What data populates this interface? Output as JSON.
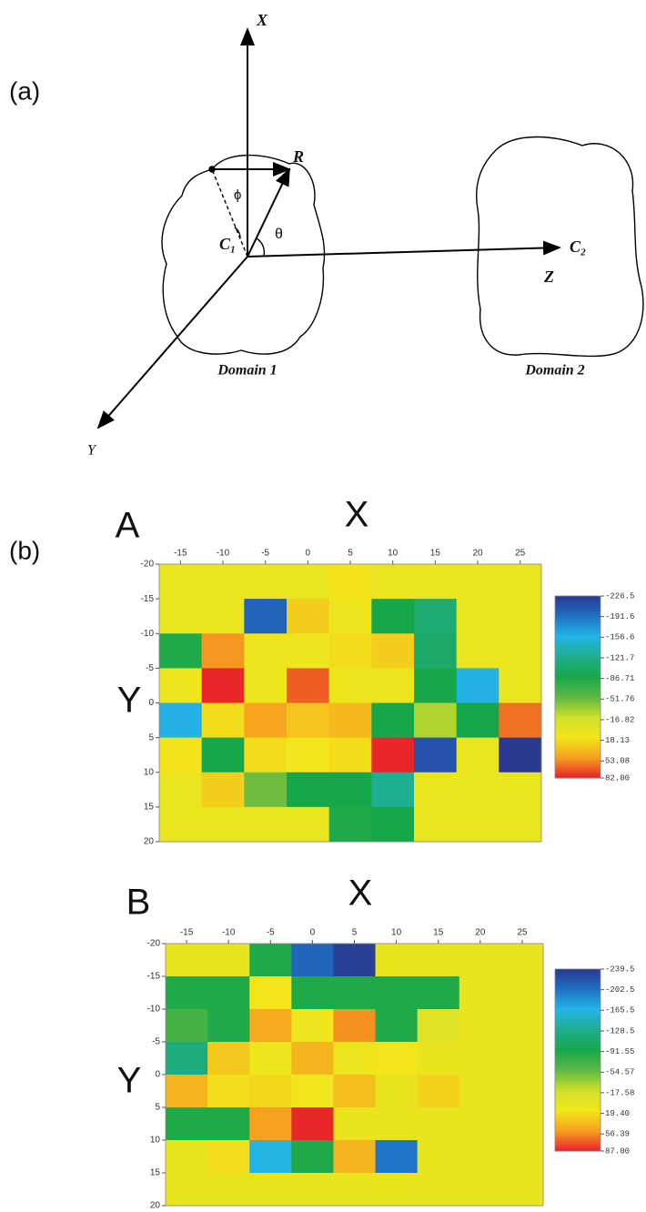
{
  "diagram": {
    "panel_a": "(a)",
    "x_axis": "X",
    "y_axis": "Y",
    "z_axis": "Z",
    "r_label": "R",
    "phi": "ϕ",
    "theta": "θ",
    "c1": "C₁",
    "c2": "C₂",
    "domain1": "Domain 1",
    "domain2": "Domain 2",
    "panel_b": "(b)"
  },
  "chart_data": [
    {
      "type": "heatmap",
      "title": "A",
      "x_label": "X",
      "y_label": "Y",
      "x": [
        -15,
        -10,
        -5,
        0,
        5,
        10,
        15,
        20,
        25
      ],
      "y": [
        -17.5,
        -12.5,
        -7.5,
        -2.5,
        2.5,
        7.5,
        12.5,
        17.5
      ],
      "values": [
        [
          5,
          5,
          5,
          5,
          15,
          5,
          5,
          5,
          5
        ],
        [
          5,
          5,
          -200,
          25,
          10,
          -90,
          -110,
          5,
          5
        ],
        [
          -85,
          50,
          10,
          10,
          18,
          25,
          -105,
          5,
          5
        ],
        [
          10,
          80,
          10,
          65,
          10,
          10,
          -90,
          -160,
          5
        ],
        [
          -160,
          18,
          45,
          30,
          35,
          -90,
          -30,
          -90,
          60
        ],
        [
          15,
          -90,
          18,
          12,
          18,
          80,
          -210,
          5,
          -226
        ],
        [
          5,
          25,
          -50,
          -90,
          -90,
          -125,
          5,
          5,
          5
        ],
        [
          5,
          5,
          5,
          5,
          -85,
          -90,
          5,
          5,
          5
        ]
      ],
      "xlim": [
        -17.5,
        27.5
      ],
      "ylim": [
        -20,
        20
      ],
      "xticks": [
        -15,
        -10,
        -5,
        0,
        5,
        10,
        15,
        20,
        25
      ],
      "yticks": [
        -20,
        -15,
        -10,
        -5,
        0,
        5,
        10,
        15,
        20
      ],
      "clim": [
        -226.5,
        82
      ],
      "colorbar_ticks": [
        -226.5,
        -191.6,
        -156.6,
        -121.7,
        -86.71,
        -51.76,
        -16.82,
        18.13,
        53.08,
        {
          "value": 82,
          "label": "82.00"
        }
      ],
      "colorscale": [
        "#2a3990",
        "#1f6fc4",
        "#23b5e8",
        "#1fae8e",
        "#17a74a",
        "#5cb844",
        "#cfe02a",
        "#f3e61a",
        "#f6a020",
        "#e8202a"
      ]
    },
    {
      "type": "heatmap",
      "title": "B",
      "x_label": "X",
      "y_label": "Y",
      "x": [
        -15,
        -10,
        -5,
        0,
        5,
        10,
        15,
        20,
        25
      ],
      "y": [
        -17.5,
        -12.5,
        -7.5,
        -2.5,
        2.5,
        7.5,
        12.5,
        17.5
      ],
      "values": [
        [
          5,
          5,
          -90,
          -210,
          -235,
          5,
          5,
          5,
          5
        ],
        [
          -90,
          -90,
          15,
          -90,
          -90,
          -90,
          -90,
          5,
          5
        ],
        [
          -70,
          -90,
          45,
          10,
          55,
          -90,
          -5,
          5,
          5
        ],
        [
          -120,
          30,
          10,
          40,
          10,
          15,
          5,
          5,
          5
        ],
        [
          40,
          18,
          22,
          12,
          35,
          5,
          25,
          5,
          5
        ],
        [
          -90,
          -90,
          50,
          85,
          5,
          5,
          5,
          5,
          5
        ],
        [
          5,
          18,
          -165,
          -90,
          40,
          -200,
          5,
          5,
          5
        ],
        [
          5,
          5,
          5,
          5,
          5,
          5,
          5,
          5,
          5
        ]
      ],
      "xlim": [
        -17.5,
        27.5
      ],
      "ylim": [
        -20,
        20
      ],
      "xticks": [
        -15,
        -10,
        -5,
        0,
        5,
        10,
        15,
        20,
        25
      ],
      "yticks": [
        -20,
        -15,
        -10,
        -5,
        0,
        5,
        10,
        15,
        20
      ],
      "clim": [
        -239.5,
        87
      ],
      "colorbar_ticks": [
        -239.5,
        -202.5,
        -165.5,
        -128.5,
        -91.55,
        -54.57,
        -17.58,
        {
          "value": 19.4,
          "label": "19.40"
        },
        56.39,
        {
          "value": 87,
          "label": "87.00"
        }
      ],
      "colorscale": [
        "#2a3990",
        "#1f6fc4",
        "#23b5e8",
        "#1fae8e",
        "#17a74a",
        "#5cb844",
        "#cfe02a",
        "#f3e61a",
        "#f6a020",
        "#e8202a"
      ]
    }
  ]
}
